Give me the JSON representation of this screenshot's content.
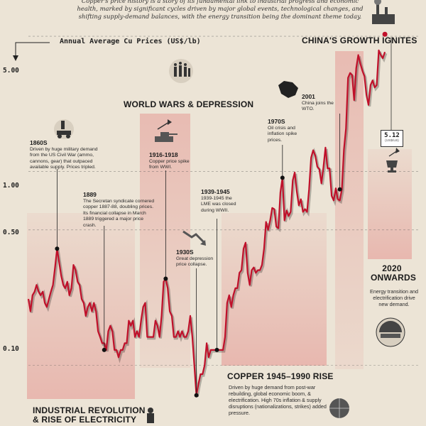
{
  "intro": "Copper's price history is a story of its fundamental link to industrial progress and economic health, marked by significant cycles driven by major global events, technological changes, and shifting supply-demand balances, with the energy transition being the dominant theme today.",
  "chart_title": "Annual Average Cu Prices (US$/lb)",
  "latest_value": {
    "value": "5.12",
    "unit": "(US$/LB)"
  },
  "eras": [
    {
      "id": "industrial",
      "title": "INDUSTRIAL REVOLUTION\n& RISE OF ELECTRICITY",
      "desc": ""
    },
    {
      "id": "wars",
      "title": "WORLD WARS & DEPRESSION",
      "desc": ""
    },
    {
      "id": "copper4590",
      "title": "COPPER 1945–1990 RISE",
      "desc": "Driven by huge demand from post-war rebuilding, global economic boom, & electrification. High 70s inflation & supply disruptions (nationalizations, strikes) added pressure."
    },
    {
      "id": "china",
      "title": "CHINA'S GROWTH IGNITES",
      "desc": ""
    },
    {
      "id": "y2020",
      "title": "2020\nONWARDS",
      "desc": "Energy transition and electrification drive new demand."
    }
  ],
  "events": [
    {
      "id": "e1860",
      "title": "1860S",
      "desc": "Driven by huge military demand from the US Civil War (ammo, cannons, gear) that outpaced available supply. Prices tripled."
    },
    {
      "id": "e1889",
      "title": "1889",
      "desc": "The Secretan syndicate cornered copper 1887-88, doubling prices. Its financial collapse in March 1889 triggered a major price crash."
    },
    {
      "id": "e1916",
      "title": "1916-1918",
      "desc": "Copper price spike from WWI."
    },
    {
      "id": "e1930",
      "title": "1930S",
      "desc": "Great depression price collapse."
    },
    {
      "id": "e1939",
      "title": "1939-1945",
      "desc": "1939-1945 the LME was closed during WWII."
    },
    {
      "id": "e1970",
      "title": "1970S",
      "desc": "Oil crisis and inflation spike prices."
    },
    {
      "id": "e2001",
      "title": "2001",
      "desc": "China joins the WTO."
    }
  ],
  "chart_data": {
    "type": "line",
    "title": "Annual Average Cu Prices (US$/lb)",
    "yscale": "log",
    "ylim": [
      0.06,
      6.5
    ],
    "yticks": [
      0.1,
      0.5,
      1.0,
      5.0
    ],
    "ytick_labels": [
      "0.10",
      "0.50",
      "1.00",
      "5.00"
    ],
    "xlim": [
      1850,
      2025
    ],
    "grid": "horizontal dashed",
    "series": [
      {
        "x": [
          1850,
          1851,
          1852,
          1853,
          1854,
          1855,
          1856,
          1857,
          1858,
          1859,
          1860,
          1861,
          1862,
          1863,
          1864,
          1865,
          1866,
          1867,
          1868,
          1869,
          1870,
          1871,
          1872,
          1873,
          1874,
          1875,
          1876,
          1877,
          1878,
          1879,
          1880,
          1881,
          1882,
          1883,
          1884,
          1885,
          1886,
          1887,
          1888,
          1889,
          1890,
          1891,
          1892,
          1893,
          1894,
          1895,
          1896,
          1897,
          1898,
          1899,
          1900,
          1901,
          1902,
          1903,
          1904,
          1905,
          1906,
          1907,
          1908,
          1909,
          1910,
          1911,
          1912,
          1913,
          1914,
          1915,
          1916,
          1917,
          1918,
          1919,
          1920,
          1921,
          1922,
          1923,
          1924,
          1925,
          1926,
          1927,
          1928,
          1929,
          1930,
          1931,
          1932,
          1933,
          1934,
          1935,
          1936,
          1937,
          1938,
          1939,
          1940,
          1941,
          1942,
          1943,
          1944,
          1945,
          1946,
          1947,
          1948,
          1949,
          1950,
          1951,
          1952,
          1953,
          1954,
          1955,
          1956,
          1957,
          1958,
          1959,
          1960,
          1961,
          1962,
          1963,
          1964,
          1965,
          1966,
          1967,
          1968,
          1969,
          1970,
          1971,
          1972,
          1973,
          1974,
          1975,
          1976,
          1977,
          1978,
          1979,
          1980,
          1981,
          1982,
          1983,
          1984,
          1985,
          1986,
          1987,
          1988,
          1989,
          1990,
          1991,
          1992,
          1993,
          1994,
          1995,
          1996,
          1997,
          1998,
          1999,
          2000,
          2001,
          2002,
          2003,
          2004,
          2005,
          2006,
          2007,
          2008,
          2009,
          2010,
          2011,
          2012,
          2013,
          2014,
          2015,
          2016,
          2017,
          2018,
          2019,
          2020,
          2021,
          2022,
          2023,
          2024
        ],
        "values": [
          0.22,
          0.19,
          0.23,
          0.24,
          0.26,
          0.24,
          0.23,
          0.24,
          0.21,
          0.2,
          0.22,
          0.24,
          0.26,
          0.32,
          0.4,
          0.34,
          0.29,
          0.26,
          0.25,
          0.27,
          0.23,
          0.25,
          0.33,
          0.31,
          0.27,
          0.26,
          0.22,
          0.21,
          0.18,
          0.2,
          0.21,
          0.19,
          0.21,
          0.19,
          0.15,
          0.14,
          0.13,
          0.13,
          0.12,
          0.15,
          0.16,
          0.15,
          0.12,
          0.12,
          0.11,
          0.12,
          0.12,
          0.13,
          0.13,
          0.17,
          0.16,
          0.17,
          0.14,
          0.15,
          0.14,
          0.17,
          0.2,
          0.21,
          0.14,
          0.14,
          0.14,
          0.14,
          0.17,
          0.16,
          0.14,
          0.18,
          0.27,
          0.28,
          0.25,
          0.19,
          0.18,
          0.14,
          0.14,
          0.15,
          0.14,
          0.15,
          0.14,
          0.14,
          0.15,
          0.18,
          0.14,
          0.1,
          0.07,
          0.08,
          0.09,
          0.09,
          0.1,
          0.13,
          0.11,
          0.12,
          0.12,
          0.12,
          0.12,
          0.12,
          0.12,
          0.12,
          0.14,
          0.21,
          0.23,
          0.2,
          0.23,
          0.25,
          0.25,
          0.3,
          0.31,
          0.4,
          0.43,
          0.3,
          0.26,
          0.31,
          0.32,
          0.3,
          0.31,
          0.31,
          0.33,
          0.4,
          0.55,
          0.5,
          0.56,
          0.65,
          0.64,
          0.52,
          0.51,
          0.78,
          0.93,
          0.56,
          0.63,
          0.59,
          0.62,
          0.9,
          0.99,
          0.79,
          0.67,
          0.72,
          0.62,
          0.64,
          0.62,
          0.81,
          1.18,
          1.29,
          1.21,
          1.06,
          1.03,
          0.87,
          1.05,
          1.33,
          1.04,
          1.04,
          0.75,
          0.71,
          0.82,
          0.72,
          0.71,
          0.81,
          1.3,
          1.67,
          3.05,
          3.23,
          3.15,
          2.34,
          3.42,
          4.0,
          3.61,
          3.32,
          3.11,
          2.49,
          2.21,
          2.8,
          2.96,
          2.72,
          2.8,
          4.23,
          4.0,
          3.85,
          4.15
        ]
      }
    ],
    "latest_label": "5.12",
    "latest_unit": "(US$/LB)"
  }
}
